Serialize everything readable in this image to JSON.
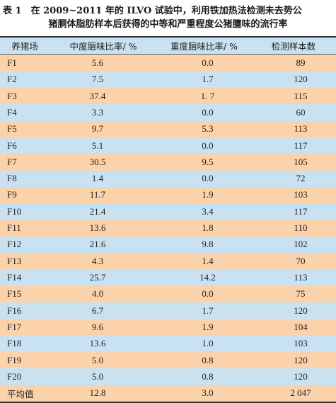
{
  "caption": {
    "line1": "表 1　在 2009~2011 年的 ILVO 试验中，利用铁加热法检测未去势公",
    "line2": "猪胴体脂肪样本后获得的中等和严重程度公猪膻味的流行率"
  },
  "table": {
    "headers": [
      "养猪场",
      "中度膻味比率/ %",
      "重度膻味比率/ %",
      "检测样本数"
    ],
    "rows": [
      [
        "F1",
        "5.6",
        "0.0",
        "89"
      ],
      [
        "F2",
        "7.5",
        "1.7",
        "120"
      ],
      [
        "F3",
        "37.4",
        "1. 7",
        "115"
      ],
      [
        "F4",
        "3.3",
        "0.0",
        "60"
      ],
      [
        "F5",
        "9.7",
        "5.3",
        "113"
      ],
      [
        "F6",
        "5.1",
        "0.0",
        "117"
      ],
      [
        "F7",
        "30.5",
        "9.5",
        "105"
      ],
      [
        "F8",
        "1.4",
        "0.0",
        "72"
      ],
      [
        "F9",
        "11.7",
        "1.9",
        "103"
      ],
      [
        "F10",
        "21.4",
        "3.4",
        "117"
      ],
      [
        "F11",
        "13.6",
        "1.8",
        "110"
      ],
      [
        "F12",
        "21.6",
        "9.8",
        "102"
      ],
      [
        "F13",
        "4.3",
        "1.4",
        "70"
      ],
      [
        "F14",
        "25.7",
        "14.2",
        "113"
      ],
      [
        "F15",
        "4.0",
        "0.0",
        "75"
      ],
      [
        "F16",
        "6.7",
        "1.7",
        "120"
      ],
      [
        "F17",
        "9.6",
        "1.9",
        "104"
      ],
      [
        "F18",
        "13.6",
        "1.0",
        "103"
      ],
      [
        "F19",
        "5.0",
        "0.8",
        "120"
      ],
      [
        "F20",
        "5.0",
        "0.8",
        "120"
      ]
    ],
    "footer": [
      "平均值",
      "12.8",
      "3.0",
      "2 047"
    ]
  },
  "colors": {
    "row_orange": "#fbd2aa",
    "row_blue": "#c9e2f2"
  }
}
